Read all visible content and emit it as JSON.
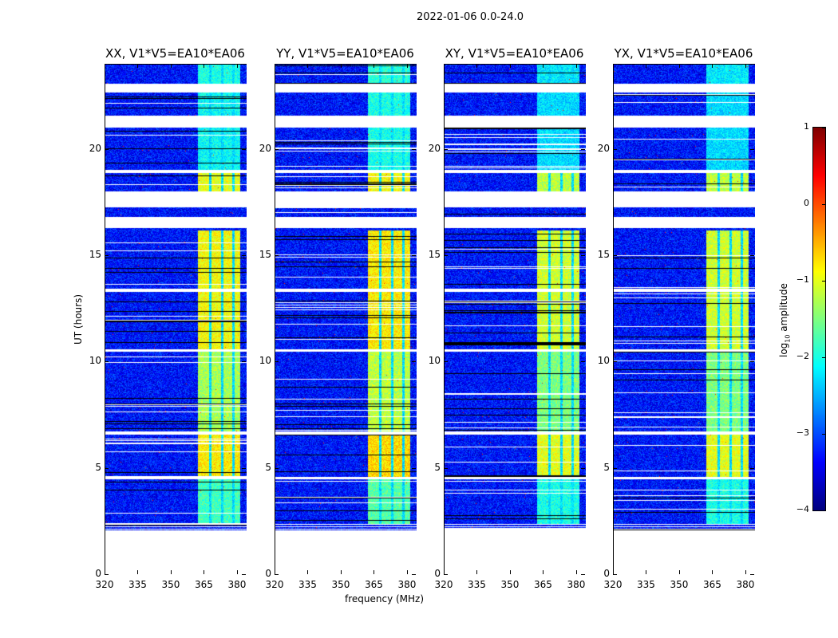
{
  "chart_data": {
    "type": "heatmap",
    "suptitle": "2022-01-06 0.0-24.0",
    "xlabel": "frequency (MHz)",
    "ylabel": "UT (hours)",
    "xlim": [
      320,
      384
    ],
    "ylim": [
      0,
      24
    ],
    "xticks": [
      320,
      335,
      350,
      365,
      380
    ],
    "yticks": [
      0,
      5,
      10,
      15,
      20
    ],
    "panels": [
      {
        "title": "XX, V1*V5=EA10*EA06",
        "bright_offset": 0
      },
      {
        "title": "YY, V1*V5=EA10*EA06",
        "bright_offset": 0.1
      },
      {
        "title": "XY, V1*V5=EA10*EA06",
        "bright_offset": -0.2
      },
      {
        "title": "YX, V1*V5=EA10*EA06",
        "bright_offset": -0.2
      }
    ],
    "flagged_hours": [
      [
        0,
        2.1
      ],
      [
        22.7,
        23.1
      ],
      [
        21.05,
        21.6
      ],
      [
        17.3,
        18.05
      ],
      [
        16.3,
        16.85
      ],
      [
        18.9,
        19.05
      ],
      [
        13.3,
        13.45
      ],
      [
        10.5,
        10.6
      ],
      [
        6.6,
        6.75
      ],
      [
        4.5,
        4.6
      ]
    ],
    "background_log_amplitude": -3.3,
    "bright_channels_mhz": [
      362,
      381
    ],
    "bright_segments": [
      {
        "hours": [
          2.4,
          4.5
        ],
        "log_amplitude": -1.8
      },
      {
        "hours": [
          4.6,
          6.6
        ],
        "log_amplitude": -0.8
      },
      {
        "hours": [
          6.75,
          10.5
        ],
        "log_amplitude": -1.3
      },
      {
        "hours": [
          10.6,
          13.3
        ],
        "log_amplitude": -0.9
      },
      {
        "hours": [
          13.45,
          16.2
        ],
        "log_amplitude": -0.9
      },
      {
        "hours": [
          18.05,
          18.9
        ],
        "log_amplitude": -1.0
      },
      {
        "hours": [
          19.05,
          22.7
        ],
        "log_amplitude": -2.1
      },
      {
        "hours": [
          23.1,
          24
        ],
        "log_amplitude": -2.0
      }
    ],
    "colorbar": {
      "label_prefix": "log",
      "label_sub": "10",
      "label_suffix": " amplitude",
      "range": [
        -4,
        1
      ],
      "ticks": [
        "1",
        "0",
        "−1",
        "−2",
        "−3",
        "−4"
      ],
      "colormap": "jet"
    }
  }
}
